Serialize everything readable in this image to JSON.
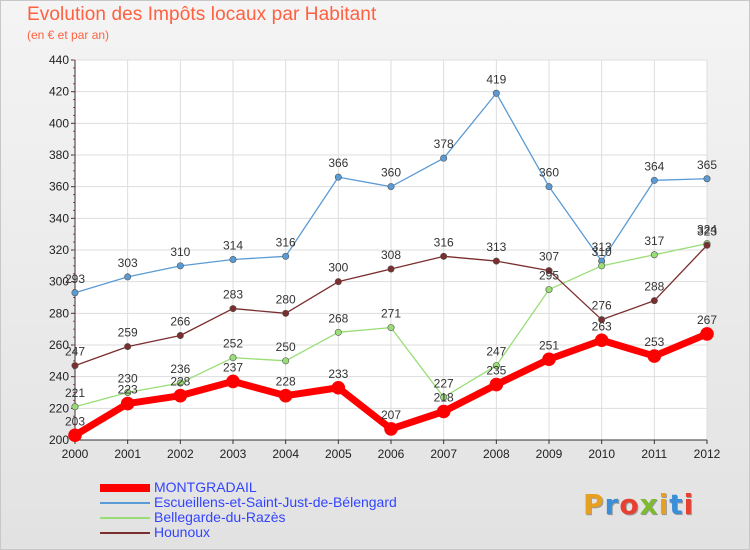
{
  "title": "Evolution des Impôts locaux par Habitant",
  "subtitle": "(en € et par an)",
  "brand": {
    "text": "Proxiti",
    "colors": [
      "#e8a020",
      "#3a8fd8",
      "#e84030",
      "#7dba30",
      "#e8a020",
      "#3a8fd8",
      "#e84030"
    ]
  },
  "chart_data": {
    "type": "line",
    "title": "Evolution des Impôts locaux par Habitant",
    "subtitle": "(en € et par an)",
    "x": [
      "2000",
      "2001",
      "2002",
      "2003",
      "2004",
      "2005",
      "2006",
      "2007",
      "2008",
      "2009",
      "2010",
      "2011",
      "2012"
    ],
    "ylim": [
      200,
      440
    ],
    "yticks": [
      "200",
      "220",
      "240",
      "260",
      "280",
      "300",
      "320",
      "340",
      "360",
      "380",
      "400",
      "420",
      "440"
    ],
    "grid": true,
    "legend_position": "bottom-left",
    "series": [
      {
        "name": "MONTGRADAIL",
        "color": "#ff0000",
        "width": 7,
        "values": [
          203,
          223,
          228,
          237,
          228,
          233,
          207,
          218,
          235,
          251,
          263,
          253,
          267
        ],
        "labels": [
          "203",
          "223",
          "228",
          "237",
          "228",
          "233",
          "207",
          "218",
          "235",
          "251",
          "263",
          "253",
          "267"
        ]
      },
      {
        "name": "Escueillens-et-Saint-Just-de-Bélengard",
        "color": "#5b9bd5",
        "width": 1.3,
        "values": [
          293,
          303,
          310,
          314,
          316,
          366,
          360,
          378,
          419,
          360,
          313,
          364,
          365
        ],
        "labels": [
          "293",
          "303",
          "310",
          "314",
          "316",
          "366",
          "360",
          "378",
          "419",
          "360",
          "313",
          "364",
          "365"
        ]
      },
      {
        "name": "Bellegarde-du-Razès",
        "color": "#99dd77",
        "width": 1.3,
        "values": [
          221,
          230,
          236,
          252,
          250,
          268,
          271,
          227,
          247,
          295,
          310,
          317,
          324
        ],
        "labels": [
          "221",
          "230",
          "236",
          "252",
          "250",
          "268",
          "271",
          "227",
          "247",
          "295",
          "310",
          "317",
          "324"
        ]
      },
      {
        "name": "Hounoux",
        "color": "#7a2e2e",
        "width": 1.3,
        "values": [
          247,
          259,
          266,
          283,
          280,
          300,
          308,
          316,
          313,
          307,
          276,
          288,
          323
        ],
        "labels": [
          "247",
          "259",
          "266",
          "283",
          "280",
          "300",
          "308",
          "316",
          "313",
          "307",
          "276",
          "288",
          "323"
        ]
      }
    ]
  }
}
